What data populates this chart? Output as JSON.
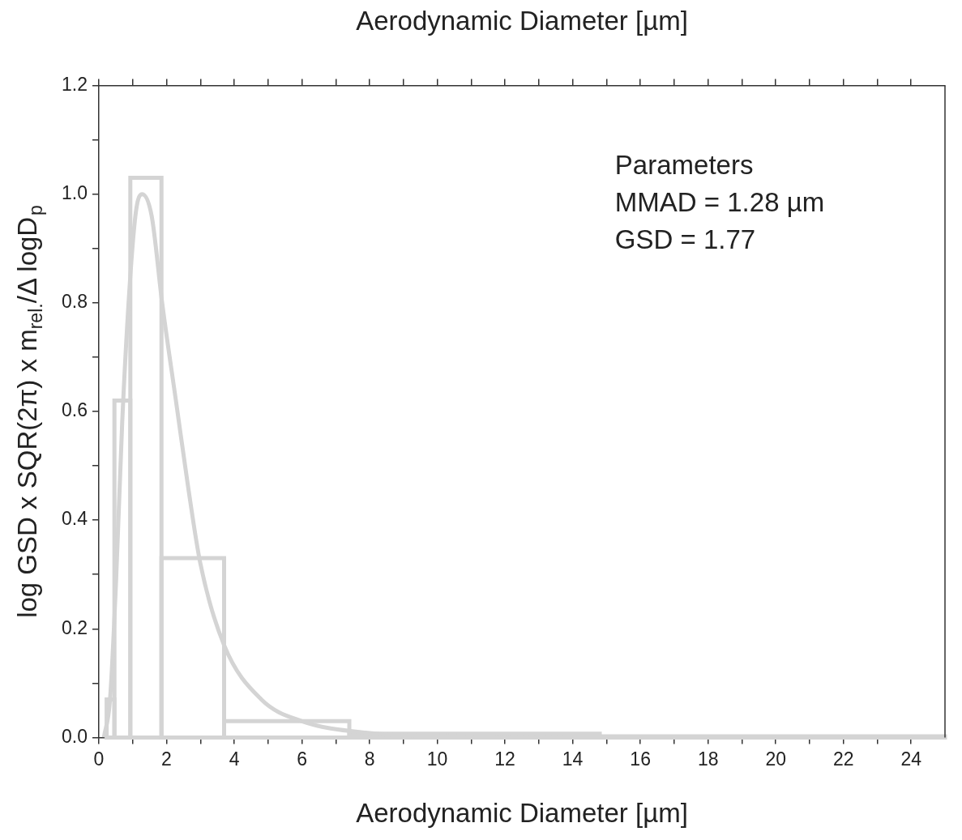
{
  "chart_data": {
    "type": "histogram",
    "x2label": "Aerodynamic Diameter [µm]",
    "xlabel": "Aerodynamic Diameter [µm]",
    "ylabel": "log GSD x SQR(2π) x m$_{rel.}$/Δ logD$_{p}$",
    "bins": [
      0.23,
      0.46,
      0.93,
      1.85,
      3.7,
      7.4,
      14.8,
      25
    ],
    "values": [
      0.07,
      0.62,
      1.03,
      0.33,
      0.03,
      0.007,
      0.002
    ],
    "color": "#d4d4d4",
    "series": [
      {
        "type": "line",
        "color": "#d4d4d4",
        "x": [
          0.15,
          0.33,
          0.51,
          0.69,
          0.92,
          1.1,
          1.28,
          1.56,
          1.87,
          2.3,
          2.64,
          3.0,
          3.7,
          4.8,
          6,
          8,
          10,
          14,
          25
        ],
        "values": [
          0,
          0.07,
          0.29,
          0.58,
          0.84,
          0.97,
          1.0,
          0.96,
          0.8,
          0.61,
          0.46,
          0.32,
          0.17,
          0.07,
          0.03,
          0.008,
          0.002,
          0,
          0
        ]
      }
    ],
    "xlim": [
      0,
      25
    ],
    "xticks": [
      0,
      {
        "value": 1,
        "label": null
      },
      2,
      {
        "value": 3,
        "label": null
      },
      4,
      {
        "value": 5,
        "label": null
      },
      6,
      {
        "value": 7,
        "label": null
      },
      8,
      {
        "value": 9,
        "label": null
      },
      10,
      {
        "value": 11,
        "label": null
      },
      12,
      {
        "value": 13,
        "label": null
      },
      14,
      {
        "value": 15,
        "label": null
      },
      16,
      {
        "value": 17,
        "label": null
      },
      18,
      {
        "value": 19,
        "label": null
      },
      20,
      {
        "value": 21,
        "label": null
      },
      22,
      {
        "value": 23,
        "label": null
      },
      24
    ],
    "ylim": [
      0,
      1.2
    ],
    "yticks": [
      {
        "value": 0,
        "label": "0.0"
      },
      {
        "value": 0.1,
        "label": null
      },
      {
        "value": 0.2,
        "label": "0.2"
      },
      {
        "value": 0.3,
        "label": null
      },
      {
        "value": 0.4,
        "label": "0.4"
      },
      {
        "value": 0.5,
        "label": null
      },
      {
        "value": 0.6,
        "label": "0.6"
      },
      {
        "value": 0.7,
        "label": null
      },
      {
        "value": 0.8,
        "label": "0.8"
      },
      {
        "value": 0.9,
        "label": null
      },
      {
        "value": 1,
        "label": "1.0"
      },
      {
        "value": 1.1,
        "label": null
      },
      1.2
    ],
    "annotations": [
      "Parameters",
      "MMAD = 1.28 µm",
      "GSD = 1.77"
    ],
    "grid": false,
    "legend": false,
    "marker": "none"
  }
}
